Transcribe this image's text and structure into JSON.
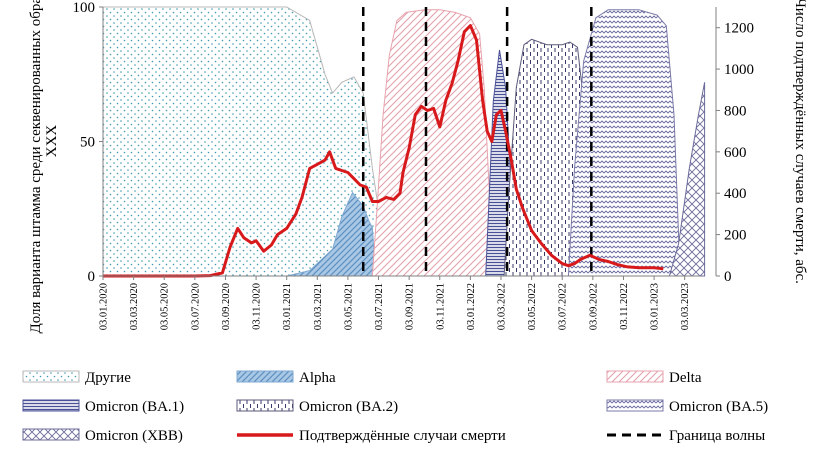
{
  "chart_data": {
    "type": "area",
    "title": "",
    "ylabel_left": "Доля варианта штамма среди секвенированных образцов, %",
    "ylabel_left_sub": "XXX",
    "ylabel_right": "Число подтверждённых случаев смерти, абс.",
    "ylim_left": [
      0,
      100
    ],
    "ylim_right": [
      0,
      1300
    ],
    "yticks_left": [
      "0",
      "50",
      "100"
    ],
    "yticks_right": [
      "0",
      "200",
      "400",
      "600",
      "800",
      "1000",
      "1200"
    ],
    "yticks_left_values": [
      0,
      50,
      100
    ],
    "yticks_right_values": [
      0,
      200,
      400,
      600,
      800,
      1000,
      1200
    ],
    "xlim": [
      0,
      39
    ],
    "x_tick_labels": [
      "03.01.2020",
      "03.03.2020",
      "03.05.2020",
      "03.07.2020",
      "03.09.2020",
      "03.11.2020",
      "03.01.2021",
      "03.03.2021",
      "03.05.2021",
      "03.07.2021",
      "03.09.2021",
      "03.11.2021",
      "03.01.2022",
      "03.03.2022",
      "03.05.2022",
      "03.07.2022",
      "03.09.2022",
      "03.11.2022",
      "03.01.2023",
      "03.03.2023"
    ],
    "x_unit": "months since 03.01.2020",
    "series_variants": [
      {
        "name": "Другие",
        "x": [
          0,
          12,
          13.5,
          14.5,
          15.0,
          15.6,
          16.4,
          17.0,
          17.6,
          18.0
        ],
        "y": [
          100,
          100,
          95,
          75,
          68,
          72,
          74,
          68,
          40,
          25
        ]
      },
      {
        "name": "Alpha",
        "x": [
          12.0,
          13.5,
          15.0,
          15.6,
          16.3,
          17.0,
          17.4,
          17.6,
          17.8
        ],
        "y": [
          0,
          2,
          10,
          22,
          31,
          26,
          20,
          18,
          0
        ]
      },
      {
        "name": "Delta",
        "x": [
          17.6,
          17.9,
          18.3,
          18.7,
          19.2,
          19.8,
          21,
          22,
          23,
          24,
          24.6,
          24.9,
          25.2,
          25.6
        ],
        "y": [
          0,
          25,
          60,
          82,
          95,
          98,
          99,
          99,
          98,
          96,
          90,
          70,
          35,
          0
        ]
      },
      {
        "name": "Omicron (BA.1)",
        "x": [
          25.0,
          25.5,
          25.9,
          26.3,
          26.7,
          27.0
        ],
        "y": [
          0,
          65,
          84,
          70,
          30,
          0
        ]
      },
      {
        "name": "Omicron (BA.2)",
        "x": [
          26.2,
          26.5,
          27.0,
          27.5,
          28.0,
          29.0,
          30.0,
          30.5,
          31.0,
          31.3,
          31.6
        ],
        "y": [
          0,
          30,
          70,
          86,
          88,
          86,
          86,
          87,
          85,
          70,
          0
        ]
      },
      {
        "name": "Omicron (BA.5)",
        "x": [
          30.4,
          30.8,
          31.4,
          32.2,
          33.0,
          35,
          36.2,
          36.8,
          37.3,
          37.7
        ],
        "y": [
          0,
          40,
          80,
          96,
          99,
          99,
          97,
          93,
          60,
          0
        ]
      },
      {
        "name": "Omicron (XBB)",
        "x": [
          37.0,
          37.6,
          38.3,
          38.9,
          39.3
        ],
        "y": [
          0,
          12,
          40,
          60,
          72
        ]
      }
    ],
    "series_deaths": {
      "name": "Подтверждённые случаи смерти",
      "x": [
        0,
        6.0,
        7.0,
        7.8,
        8.3,
        8.8,
        9.2,
        9.7,
        10.0,
        10.5,
        11.0,
        11.4,
        12.0,
        12.6,
        13.0,
        13.5,
        14.0,
        14.5,
        14.8,
        15.2,
        15.6,
        16.0,
        16.4,
        16.8,
        17.2,
        17.6,
        18.0,
        18.5,
        19.0,
        19.4,
        19.6,
        20.0,
        20.4,
        20.8,
        21.2,
        21.6,
        22.0,
        22.4,
        22.8,
        23.2,
        23.6,
        24.0,
        24.4,
        24.8,
        25.1,
        25.4,
        25.7,
        26.0,
        26.3,
        26.7,
        27.0,
        27.4,
        28.0,
        28.6,
        29.3,
        30.0,
        30.4,
        30.8,
        31.2,
        31.8,
        32.4,
        33.0,
        33.6,
        34.2,
        35.0,
        36.0,
        36.6
      ],
      "y": [
        0,
        0,
        2,
        15,
        140,
        230,
        185,
        160,
        170,
        120,
        150,
        200,
        230,
        300,
        380,
        520,
        540,
        560,
        600,
        520,
        510,
        500,
        470,
        440,
        430,
        360,
        360,
        380,
        370,
        400,
        500,
        620,
        780,
        820,
        800,
        810,
        720,
        850,
        930,
        1040,
        1180,
        1210,
        1140,
        850,
        700,
        650,
        780,
        800,
        700,
        550,
        420,
        330,
        220,
        160,
        100,
        60,
        50,
        60,
        80,
        100,
        80,
        70,
        55,
        45,
        40,
        40,
        35
      ]
    },
    "wave_boundaries": [
      17.0,
      21.1,
      26.4,
      31.9
    ],
    "legend": [
      {
        "label": "Другие",
        "pattern": "others"
      },
      {
        "label": "Alpha",
        "pattern": "alpha"
      },
      {
        "label": "Delta",
        "pattern": "delta"
      },
      {
        "label": "Omicron (BA.1)",
        "pattern": "ba1"
      },
      {
        "label": "Omicron (BA.2)",
        "pattern": "ba2"
      },
      {
        "label": "Omicron (BA.5)",
        "pattern": "ba5"
      },
      {
        "label": "Omicron (XBB)",
        "pattern": "xbb"
      },
      {
        "label": "Подтверждённые случаи смерти",
        "pattern": "deaths-line"
      },
      {
        "label": "Граница волны",
        "pattern": "wave-boundary"
      }
    ],
    "legend_position": "bottom",
    "colors": {
      "others_stroke": "#b8b8b8",
      "alpha": "#7fa9d2",
      "delta": "#e8a3ae",
      "ba1": "#4a5096",
      "ba2": "#5a5a7a",
      "ba5": "#7a7aa8",
      "xbb": "#6b6b9a",
      "deaths": "#d7191c",
      "boundary": "#000000"
    }
  }
}
